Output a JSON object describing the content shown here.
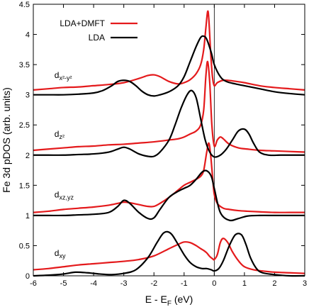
{
  "chart_data": {
    "type": "line",
    "xlabel_main": "E - E",
    "xlabel_sub": "F",
    "xlabel_tail": " (eV)",
    "ylabel": "Fe 3d pDOS (arb. units)",
    "xlim": [
      -6,
      3
    ],
    "ylim": [
      0,
      4.5
    ],
    "xticks": [
      -6,
      -5,
      -4,
      -3,
      -2,
      -1,
      0,
      1,
      2,
      3
    ],
    "xtick_labels": [
      "-6",
      "-5",
      "-4",
      "-3",
      "-2",
      "-1",
      "0",
      "1",
      "2",
      "3"
    ],
    "yticks": [
      0,
      0.5,
      1,
      1.5,
      2,
      2.5,
      3,
      3.5,
      4,
      4.5
    ],
    "ytick_labels": [
      "0",
      "0.5",
      "1",
      "1.5",
      "2",
      "2.5",
      "3",
      "3.5",
      "4",
      "4.5"
    ],
    "vline_x": 0,
    "legend_position": "top-left",
    "legend": [
      {
        "label": "LDA+DMFT",
        "color": "#e41a1c"
      },
      {
        "label": "LDA",
        "color": "#000000"
      }
    ],
    "orbital_labels": [
      {
        "main": "d",
        "sub": "x²-y²",
        "x": -5.3,
        "y": 3.28
      },
      {
        "main": "d",
        "sub": "z²",
        "x": -5.3,
        "y": 2.3
      },
      {
        "main": "d",
        "sub": "xz,yz",
        "x": -5.3,
        "y": 1.3
      },
      {
        "main": "d",
        "sub": "xy",
        "x": -5.3,
        "y": 0.33
      }
    ],
    "series": [
      {
        "name": "LDA+DMFT",
        "color": "#e41a1c",
        "orbital": "dxy",
        "x": [
          -6,
          -5.5,
          -5,
          -4.5,
          -4,
          -3.5,
          -3,
          -2.5,
          -2,
          -1.5,
          -1.2,
          -1,
          -0.8,
          -0.6,
          -0.45,
          -0.35,
          -0.25,
          -0.15,
          -0.05,
          0,
          0.1,
          0.2,
          0.3,
          0.45,
          0.6,
          0.8,
          1,
          1.3,
          1.6,
          2,
          2.5,
          3
        ],
        "y": [
          0.1,
          0.12,
          0.15,
          0.18,
          0.2,
          0.22,
          0.24,
          0.27,
          0.33,
          0.45,
          0.52,
          0.56,
          0.55,
          0.5,
          0.45,
          0.42,
          0.38,
          0.32,
          0.28,
          0.27,
          0.35,
          0.55,
          0.62,
          0.55,
          0.4,
          0.25,
          0.15,
          0.1,
          0.08,
          0.06,
          0.05,
          0.04
        ]
      },
      {
        "name": "LDA",
        "color": "#000000",
        "orbital": "dxy",
        "x": [
          -6,
          -5.5,
          -5,
          -4.6,
          -4.2,
          -3.8,
          -3.4,
          -3,
          -2.6,
          -2.2,
          -1.9,
          -1.7,
          -1.55,
          -1.4,
          -1.2,
          -1,
          -0.8,
          -0.6,
          -0.4,
          -0.25,
          -0.1,
          0,
          0.15,
          0.3,
          0.5,
          0.7,
          0.9,
          1.05,
          1.2,
          1.4,
          1.6,
          2,
          2.5,
          3
        ],
        "y": [
          0.0,
          0.01,
          0.03,
          0.06,
          0.05,
          0.03,
          0.02,
          0.04,
          0.1,
          0.3,
          0.55,
          0.7,
          0.73,
          0.68,
          0.52,
          0.35,
          0.22,
          0.15,
          0.12,
          0.12,
          0.1,
          0.08,
          0.12,
          0.25,
          0.5,
          0.68,
          0.68,
          0.52,
          0.3,
          0.12,
          0.05,
          0.02,
          0.0,
          0.0
        ]
      },
      {
        "name": "LDA+DMFT",
        "color": "#e41a1c",
        "orbital": "dxz,yz",
        "x": [
          -6,
          -5.5,
          -5,
          -4.5,
          -4,
          -3.5,
          -3.2,
          -3,
          -2.8,
          -2.5,
          -2.2,
          -2,
          -1.8,
          -1.5,
          -1.2,
          -1,
          -0.8,
          -0.6,
          -0.45,
          -0.35,
          -0.25,
          -0.18,
          -0.12,
          -0.05,
          0,
          0.1,
          0.3,
          0.5,
          0.8,
          1.1,
          1.5,
          2,
          2.5,
          3
        ],
        "y": [
          1.05,
          1.07,
          1.1,
          1.12,
          1.14,
          1.17,
          1.2,
          1.22,
          1.21,
          1.18,
          1.15,
          1.15,
          1.2,
          1.3,
          1.42,
          1.5,
          1.55,
          1.6,
          1.65,
          1.75,
          2.05,
          2.2,
          2.0,
          1.6,
          1.35,
          1.2,
          1.12,
          1.1,
          1.08,
          1.07,
          1.06,
          1.05,
          1.05,
          1.05
        ]
      },
      {
        "name": "LDA",
        "color": "#000000",
        "orbital": "dxz,yz",
        "x": [
          -6,
          -5.5,
          -5,
          -4.5,
          -4,
          -3.5,
          -3.2,
          -3,
          -2.8,
          -2.5,
          -2.2,
          -2,
          -1.8,
          -1.5,
          -1.2,
          -1,
          -0.8,
          -0.6,
          -0.4,
          -0.25,
          -0.1,
          0,
          0.2,
          0.5,
          0.8,
          1.1,
          1.5,
          2,
          2.5,
          3
        ],
        "y": [
          1.0,
          1.0,
          1.0,
          1.01,
          1.02,
          1.05,
          1.15,
          1.25,
          1.2,
          1.05,
          0.95,
          0.96,
          1.1,
          1.3,
          1.4,
          1.45,
          1.5,
          1.6,
          1.72,
          1.74,
          1.65,
          1.45,
          1.05,
          0.92,
          0.95,
          0.99,
          1.0,
          1.0,
          1.0,
          1.0
        ]
      },
      {
        "name": "LDA+DMFT",
        "color": "#e41a1c",
        "orbital": "dz2",
        "x": [
          -6,
          -5.5,
          -5,
          -4.5,
          -4,
          -3.5,
          -3,
          -2.5,
          -2,
          -1.5,
          -1.2,
          -1,
          -0.8,
          -0.6,
          -0.45,
          -0.35,
          -0.28,
          -0.22,
          -0.15,
          -0.08,
          0,
          0.1,
          0.2,
          0.3,
          0.5,
          0.8,
          1.1,
          1.5,
          2,
          2.5,
          3
        ],
        "y": [
          2.08,
          2.1,
          2.12,
          2.14,
          2.15,
          2.17,
          2.18,
          2.2,
          2.22,
          2.25,
          2.27,
          2.3,
          2.35,
          2.4,
          2.5,
          2.75,
          3.3,
          3.55,
          3.2,
          2.5,
          2.15,
          2.25,
          2.3,
          2.27,
          2.18,
          2.12,
          2.1,
          2.08,
          2.07,
          2.06,
          2.05
        ]
      },
      {
        "name": "LDA",
        "color": "#000000",
        "orbital": "dz2",
        "x": [
          -6,
          -5.5,
          -5,
          -4.5,
          -4,
          -3.5,
          -3.2,
          -3,
          -2.8,
          -2.5,
          -2.2,
          -2,
          -1.8,
          -1.5,
          -1.3,
          -1.1,
          -0.9,
          -0.75,
          -0.6,
          -0.45,
          -0.3,
          -0.15,
          0,
          0.2,
          0.4,
          0.6,
          0.8,
          1,
          1.15,
          1.3,
          1.5,
          1.8,
          2.2,
          2.6,
          3
        ],
        "y": [
          2.0,
          2.0,
          2.0,
          2.01,
          2.02,
          2.05,
          2.1,
          2.13,
          2.1,
          2.02,
          1.98,
          1.98,
          2.05,
          2.25,
          2.5,
          2.78,
          3.0,
          3.07,
          2.95,
          2.6,
          2.25,
          2.05,
          1.97,
          2.0,
          2.1,
          2.25,
          2.4,
          2.43,
          2.35,
          2.2,
          2.05,
          2.0,
          2.0,
          2.0,
          2.0
        ]
      },
      {
        "name": "LDA+DMFT",
        "color": "#e41a1c",
        "orbital": "dx2-y2",
        "x": [
          -6,
          -5.5,
          -5,
          -4.5,
          -4,
          -3.5,
          -3,
          -2.5,
          -2.2,
          -2,
          -1.8,
          -1.5,
          -1.2,
          -1,
          -0.8,
          -0.6,
          -0.45,
          -0.35,
          -0.28,
          -0.22,
          -0.18,
          -0.12,
          -0.06,
          0,
          0.1,
          0.3,
          0.6,
          1,
          1.5,
          2,
          2.5,
          3
        ],
        "y": [
          3.08,
          3.1,
          3.12,
          3.13,
          3.15,
          3.17,
          3.2,
          3.27,
          3.32,
          3.33,
          3.3,
          3.22,
          3.18,
          3.2,
          3.25,
          3.35,
          3.5,
          3.75,
          4.1,
          4.38,
          4.25,
          3.7,
          3.3,
          3.15,
          3.2,
          3.24,
          3.23,
          3.2,
          3.15,
          3.12,
          3.1,
          3.08
        ]
      },
      {
        "name": "LDA",
        "color": "#000000",
        "orbital": "dx2-y2",
        "x": [
          -6,
          -5.5,
          -5,
          -4.5,
          -4,
          -3.7,
          -3.4,
          -3.2,
          -3,
          -2.8,
          -2.6,
          -2.4,
          -2.2,
          -2,
          -1.8,
          -1.5,
          -1.2,
          -1,
          -0.8,
          -0.6,
          -0.45,
          -0.35,
          -0.25,
          -0.1,
          0,
          0.2,
          0.4,
          0.7,
          1,
          1.5,
          2,
          2.5,
          3
        ],
        "y": [
          3.0,
          3.0,
          3.0,
          3.01,
          3.03,
          3.07,
          3.15,
          3.22,
          3.24,
          3.22,
          3.15,
          3.06,
          3.0,
          2.98,
          3.0,
          3.05,
          3.15,
          3.3,
          3.55,
          3.8,
          3.95,
          3.97,
          3.92,
          3.7,
          3.5,
          3.3,
          3.22,
          3.18,
          3.15,
          3.1,
          3.05,
          3.02,
          3.0
        ]
      }
    ]
  }
}
